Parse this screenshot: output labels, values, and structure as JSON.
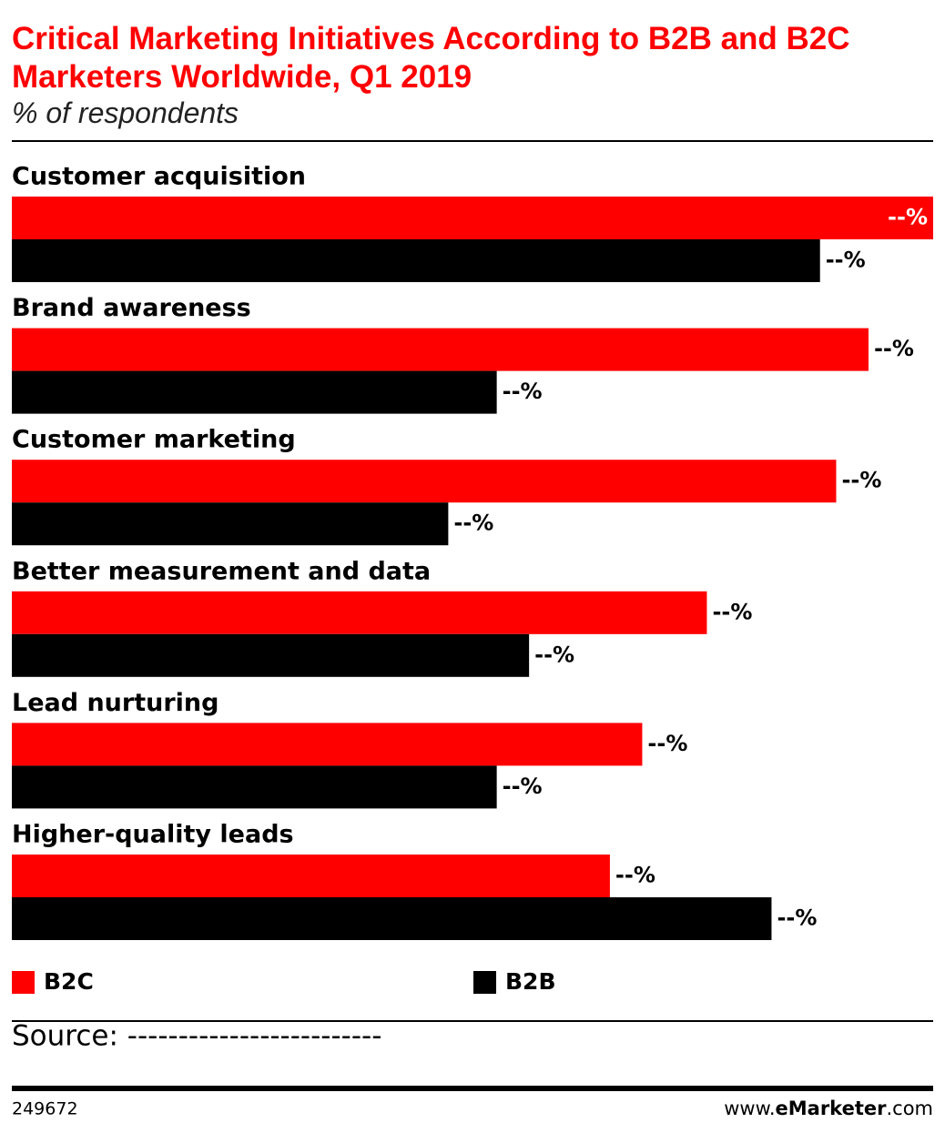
{
  "chart_data": {
    "type": "bar",
    "orientation": "horizontal",
    "title": "Critical Marketing Initiatives According to B2B and B2C Marketers Worldwide, Q1 2019",
    "subtitle": "% of respondents",
    "categories": [
      "Customer acquisition",
      "Brand awareness",
      "Customer marketing",
      "Better measurement and data",
      "Lead nurturing",
      "Higher-quality leads"
    ],
    "series": [
      {
        "name": "B2C",
        "color": "#ff0000",
        "values": [
          57,
          53,
          51,
          43,
          39,
          37
        ],
        "value_labels": [
          "--%",
          "--%",
          "--%",
          "--%",
          "--%",
          "--%"
        ]
      },
      {
        "name": "B2B",
        "color": "#000000",
        "values": [
          50,
          30,
          27,
          32,
          30,
          47
        ],
        "value_labels": [
          "--%",
          "--%",
          "--%",
          "--%",
          "--%",
          "--%"
        ]
      }
    ],
    "xlim": [
      0,
      57
    ],
    "source": "Source: -------------------------",
    "chart_id": "249672",
    "site": [
      "www.",
      "eMarketer",
      ".com"
    ]
  }
}
